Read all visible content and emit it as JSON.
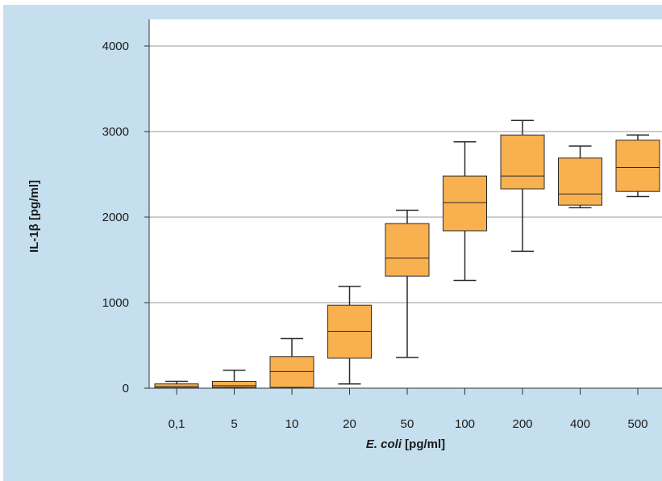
{
  "chart_data": {
    "type": "boxplot",
    "categories": [
      "0,1",
      "5",
      "10",
      "20",
      "50",
      "100",
      "200",
      "400",
      "500"
    ],
    "series": [
      {
        "boxes": [
          {
            "category": "0,1",
            "min": 5,
            "q1": 5,
            "median": 20,
            "q3": 50,
            "max": 80
          },
          {
            "category": "5",
            "min": 10,
            "q1": 10,
            "median": 30,
            "q3": 80,
            "max": 210
          },
          {
            "category": "10",
            "min": 10,
            "q1": 10,
            "median": 195,
            "q3": 370,
            "max": 580
          },
          {
            "category": "20",
            "min": 50,
            "q1": 350,
            "median": 665,
            "q3": 970,
            "max": 1190
          },
          {
            "category": "50",
            "min": 360,
            "q1": 1310,
            "median": 1520,
            "q3": 1925,
            "max": 2080
          },
          {
            "category": "100",
            "min": 1260,
            "q1": 1840,
            "median": 2170,
            "q3": 2480,
            "max": 2880
          },
          {
            "category": "200",
            "min": 1600,
            "q1": 2330,
            "median": 2480,
            "q3": 2960,
            "max": 3130
          },
          {
            "category": "400",
            "min": 2110,
            "q1": 2140,
            "median": 2270,
            "q3": 2690,
            "max": 2830
          },
          {
            "category": "500",
            "min": 2240,
            "q1": 2300,
            "median": 2580,
            "q3": 2900,
            "max": 2960
          }
        ]
      }
    ],
    "y_ticks": [
      "0",
      "1000",
      "2000",
      "3000",
      "4000"
    ],
    "ylim": [
      0,
      4000
    ],
    "ylabel": "IL-1β [pg/ml]",
    "xlabel_italic": "E. coli",
    "xlabel_rest": " [pg/ml]",
    "grid": true,
    "colors": {
      "box_fill": "#f9b04f",
      "box_stroke": "#2b2b2b",
      "background": "#c5dfee",
      "plot_area": "#ffffff",
      "grid": "#999999"
    }
  }
}
